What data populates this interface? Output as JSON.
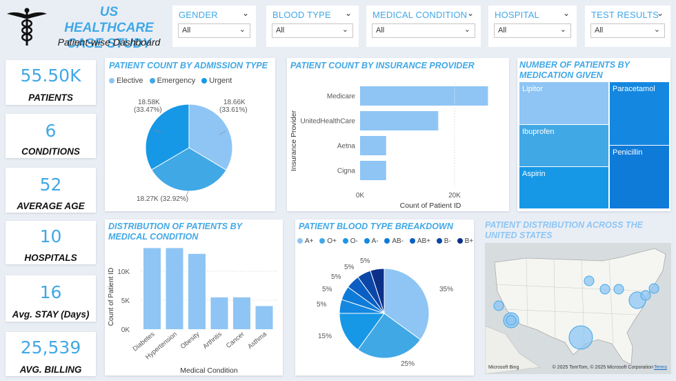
{
  "header": {
    "title": "US HEALTHCARE CASE STUDY",
    "subtitle": "Patient-wise Dashboard"
  },
  "slicers": [
    {
      "label": "GENDER",
      "value": "All"
    },
    {
      "label": "BLOOD TYPE",
      "value": "All"
    },
    {
      "label": "MEDICAL CONDITION",
      "value": "All"
    },
    {
      "label": "HOSPITAL",
      "value": "All"
    },
    {
      "label": "TEST RESULTS",
      "value": "All"
    }
  ],
  "kpis": [
    {
      "value": "55.50K",
      "label": "PATIENTS"
    },
    {
      "value": "6",
      "label": "CONDITIONS"
    },
    {
      "value": "52",
      "label": "AVERAGE AGE"
    },
    {
      "value": "10",
      "label": "HOSPITALS"
    },
    {
      "value": "16",
      "label": "Avg. STAY (Days)"
    },
    {
      "value": "25,539",
      "label": "AVG. BILLING"
    }
  ],
  "admission": {
    "title": "PATIENT COUNT BY ADMISSION TYPE",
    "legend": [
      "Elective",
      "Emergency",
      "Urgent"
    ],
    "labels": [
      "18.66K",
      "(33.61%)",
      "18.27K (32.92%)",
      "18.58K",
      "(33.47%)"
    ],
    "chart_data": {
      "type": "pie",
      "categories": [
        "Elective",
        "Emergency",
        "Urgent"
      ],
      "values": [
        18.66,
        18.27,
        18.58
      ],
      "colors": [
        "#8ec5f4",
        "#41a8e6",
        "#1798e6"
      ]
    }
  },
  "insurance": {
    "title": "PATIENT COUNT BY INSURANCE PROVIDER",
    "ylabel": "Insurance Provider",
    "xlabel": "Count of Patient ID",
    "ticks": [
      "0K",
      "20K"
    ],
    "chart_data": {
      "type": "bar",
      "categories": [
        "Medicare",
        "UnitedHealthCare",
        "Aetna",
        "Cigna"
      ],
      "values": [
        27000,
        16500,
        5500,
        5500
      ],
      "xlim": [
        0,
        30000
      ],
      "color": "#8ec5f4"
    }
  },
  "medication": {
    "title": "NUMBER OF PATIENTS BY MEDICATION GIVEN",
    "items": [
      "Lipitor",
      "Ibuprofen",
      "Aspirin",
      "Paracetamol",
      "Penicillin"
    ],
    "chart_data": {
      "type": "table",
      "categories": [
        "Lipitor",
        "Ibuprofen",
        "Aspirin",
        "Paracetamol",
        "Penicillin"
      ],
      "colors": [
        "#8ec5f4",
        "#41a8e6",
        "#1798e6",
        "#1488e0",
        "#0f7bd9"
      ]
    }
  },
  "condition": {
    "title": "DISTRIBUTION OF PATIENTS BY MEDICAL CONDITION",
    "ylabel": "Count of Patient ID",
    "xlabel": "Medical Condition",
    "ticks": [
      "0K",
      "5K",
      "10K"
    ],
    "chart_data": {
      "type": "bar",
      "categories": [
        "Diabetes",
        "Hypertension",
        "Obesity",
        "Arthritis",
        "Cancer",
        "Asthma"
      ],
      "values": [
        14000,
        14000,
        13000,
        5500,
        5500,
        4000
      ],
      "ylim": [
        0,
        15000
      ],
      "color": "#8ec5f4"
    }
  },
  "blood": {
    "title": "PATIENT BLOOD TYPE BREAKDOWN",
    "legend": [
      "A+",
      "O+",
      "O-",
      "A-",
      "AB-",
      "AB+",
      "B-",
      "B+"
    ],
    "labels": [
      "35%",
      "25%",
      "15%",
      "5%",
      "5%",
      "5%",
      "5%",
      "5%"
    ],
    "chart_data": {
      "type": "pie",
      "categories": [
        "A+",
        "O+",
        "O-",
        "A-",
        "AB-",
        "AB+",
        "B-",
        "B+"
      ],
      "values": [
        35,
        25,
        15,
        5,
        5,
        5,
        5,
        5
      ],
      "colors": [
        "#8ec5f4",
        "#41a8e6",
        "#1798e6",
        "#1488e0",
        "#0f7bd9",
        "#0b5fc4",
        "#0a47a8",
        "#0c2f88"
      ]
    }
  },
  "map": {
    "title": "PATIENT DISTRIBUTION ACROSS THE UNITED STATES",
    "brand": "Microsoft Bing",
    "copyright": "© 2025 TomTom, © 2025 Microsoft Corporation",
    "terms": "Terms"
  }
}
